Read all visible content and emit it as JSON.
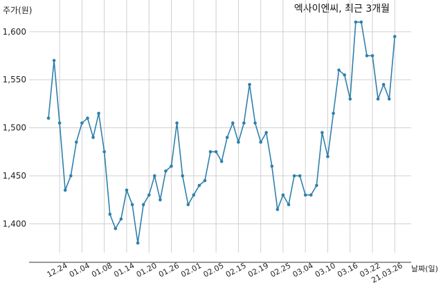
{
  "chart_data": {
    "type": "line",
    "title": "엑사이엔씨, 최근 3개월",
    "ylabel": "주가(원)",
    "xlabel": "날짜(일)",
    "ylim": [
      1370,
      1615
    ],
    "yticks": [
      1400,
      1450,
      1500,
      1550,
      1600
    ],
    "ytick_labels": [
      "1,400",
      "1,450",
      "1,500",
      "1,550",
      "1,600"
    ],
    "x_ticks": [
      {
        "label": "12.24",
        "index": 2
      },
      {
        "label": "01.04",
        "index": 6
      },
      {
        "label": "01.08",
        "index": 10
      },
      {
        "label": "01.14",
        "index": 14
      },
      {
        "label": "01.20",
        "index": 18
      },
      {
        "label": "01.26",
        "index": 22
      },
      {
        "label": "02.01",
        "index": 26
      },
      {
        "label": "02.05",
        "index": 30
      },
      {
        "label": "02.15",
        "index": 34
      },
      {
        "label": "02.19",
        "index": 38
      },
      {
        "label": "02.25",
        "index": 42
      },
      {
        "label": "03.04",
        "index": 46
      },
      {
        "label": "03.10",
        "index": 50
      },
      {
        "label": "03.16",
        "index": 54
      },
      {
        "label": "03.22",
        "index": 58
      },
      {
        "label": "21.03.26",
        "index": 62
      }
    ],
    "series": [
      {
        "color": "#2e7fab",
        "values": [
          1510,
          1570,
          1505,
          1435,
          1450,
          1485,
          1505,
          1510,
          1490,
          1515,
          1475,
          1410,
          1395,
          1405,
          1435,
          1420,
          1380,
          1420,
          1430,
          1450,
          1425,
          1455,
          1460,
          1505,
          1450,
          1420,
          1430,
          1440,
          1445,
          1475,
          1475,
          1465,
          1490,
          1505,
          1485,
          1505,
          1545,
          1505,
          1485,
          1495,
          1460,
          1415,
          1430,
          1420,
          1450,
          1450,
          1430,
          1430,
          1440,
          1495,
          1470,
          1515,
          1560,
          1555,
          1530,
          1610,
          1610,
          1575,
          1575,
          1530,
          1545,
          1530,
          1595
        ]
      }
    ],
    "grid": true
  }
}
